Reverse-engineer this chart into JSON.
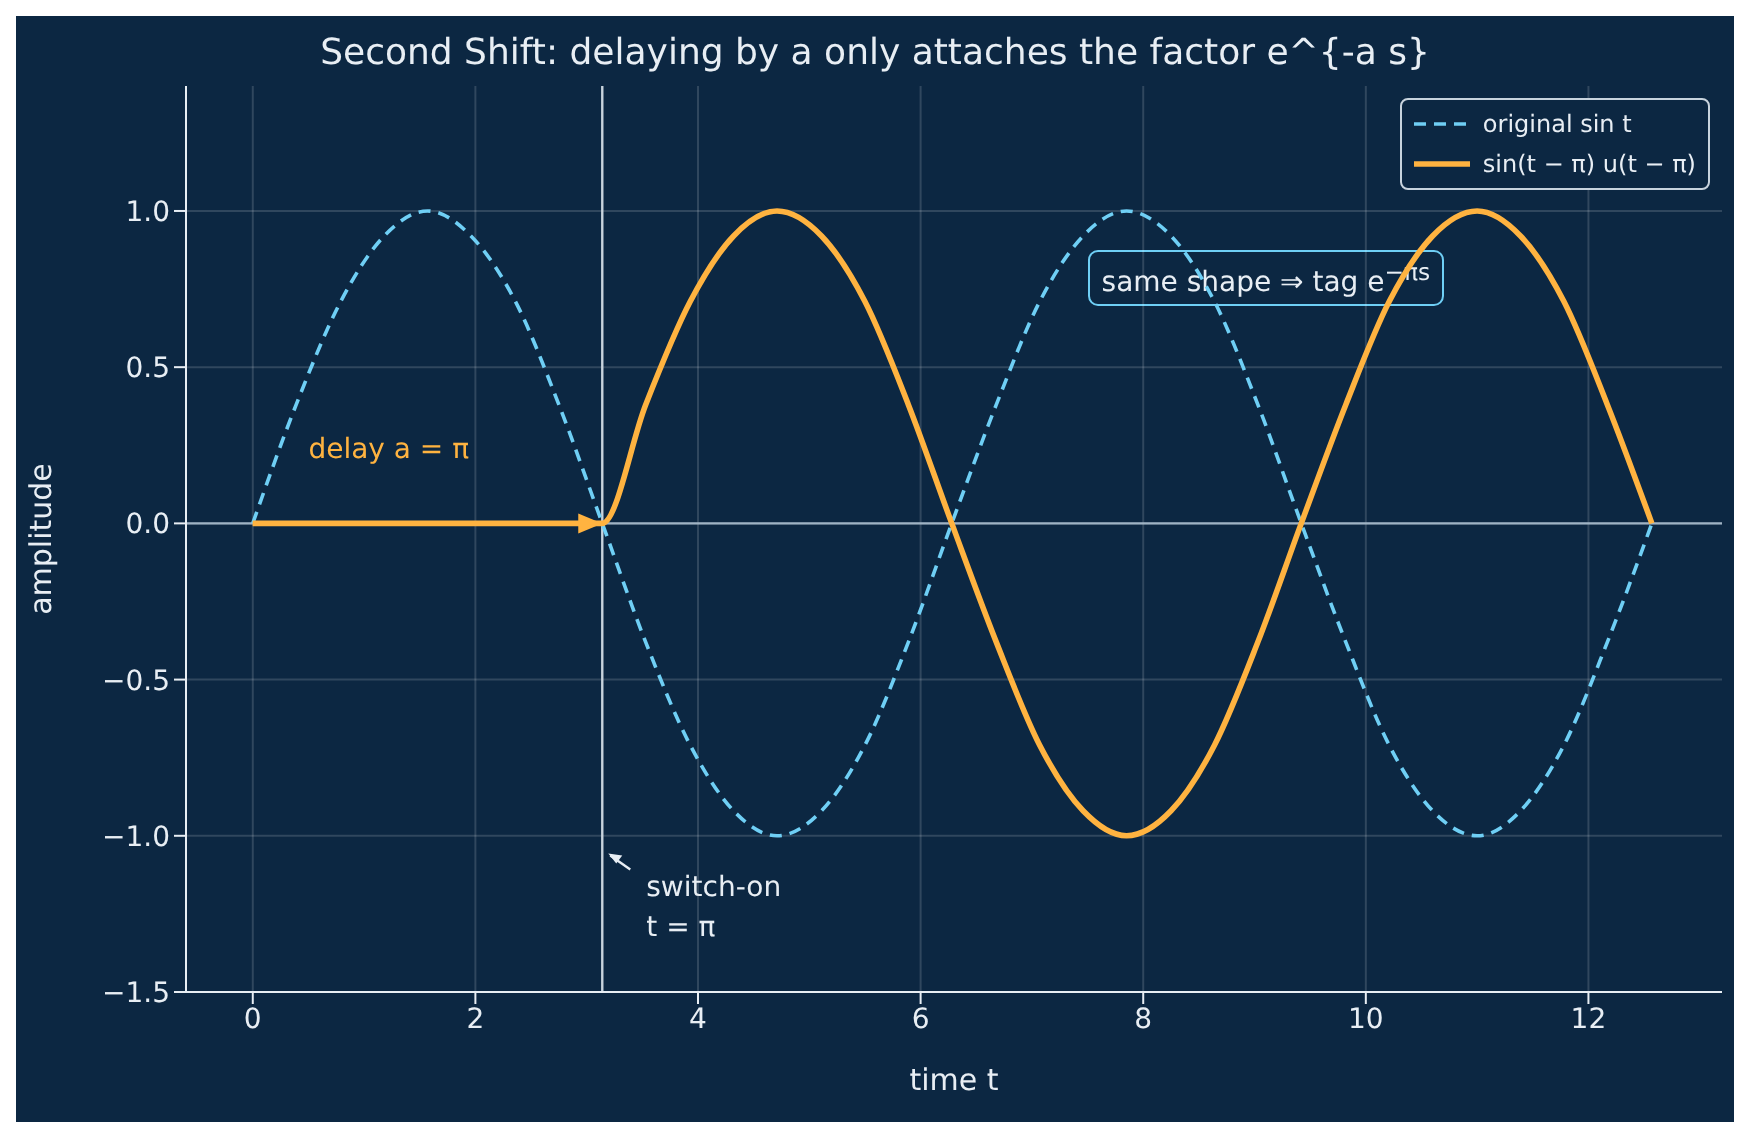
{
  "chart_data": {
    "type": "line",
    "title": "Second Shift: delaying by a only attaches the factor  e^{-a s}",
    "xlabel": "time  t",
    "ylabel": "amplitude",
    "x": [
      0,
      0.39,
      0.79,
      1.18,
      1.57,
      1.96,
      2.36,
      2.75,
      3.14,
      3.53,
      3.93,
      4.32,
      4.71,
      5.11,
      5.5,
      5.89,
      6.28,
      6.68,
      7.07,
      7.46,
      7.85,
      8.25,
      8.64,
      9.03,
      9.42,
      9.82,
      10.21,
      10.6,
      11.0,
      11.39,
      11.78,
      12.17,
      12.57
    ],
    "series": [
      {
        "name": "original sin t",
        "color": "#6fcff5",
        "line_style": "dashed",
        "values": [
          0,
          0.38,
          0.71,
          0.92,
          1,
          0.92,
          0.71,
          0.38,
          0,
          -0.38,
          -0.71,
          -0.92,
          -1,
          -0.92,
          -0.71,
          -0.38,
          0,
          0.38,
          0.71,
          0.92,
          1,
          0.92,
          0.71,
          0.38,
          0,
          -0.38,
          -0.71,
          -0.92,
          -1,
          -0.92,
          -0.71,
          -0.38,
          0
        ]
      },
      {
        "name": "sin(t − π) u(t − π)",
        "color": "#ffb340",
        "line_style": "solid",
        "values": [
          0,
          0,
          0,
          0,
          0,
          0,
          0,
          0,
          0,
          0.38,
          0.71,
          0.92,
          1,
          0.92,
          0.71,
          0.38,
          0,
          -0.38,
          -0.71,
          -0.92,
          -1,
          -0.92,
          -0.71,
          -0.38,
          0,
          0.38,
          0.71,
          0.92,
          1,
          0.92,
          0.71,
          0.38,
          0
        ]
      }
    ],
    "xlim": [
      -0.6,
      13.2
    ],
    "xticks": [
      0,
      2,
      4,
      6,
      8,
      10,
      12
    ],
    "ylim": [
      -1.5,
      1.4
    ],
    "yticks": [
      -1.5,
      {
        "value": -1,
        "label": "−1.0"
      },
      -0.5,
      {
        "value": 0,
        "label": "0.0"
      },
      0.5,
      {
        "value": 1,
        "label": "1.0"
      }
    ],
    "grid": true,
    "legend": "top right",
    "marker": "none",
    "ref_lines": [
      {
        "axis": "y",
        "value": 0,
        "color": "#9fb3c4"
      },
      {
        "axis": "x",
        "value": 3.14,
        "color": "#c8d3dd"
      }
    ],
    "annotations": [
      "delay a = π",
      "switch-on\nt = π",
      "same shape ⇒ tag e$^{−πs}$"
    ]
  }
}
